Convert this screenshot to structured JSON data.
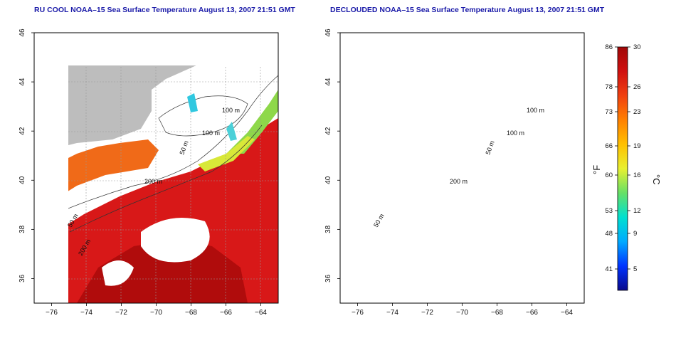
{
  "panels": [
    {
      "title": "RU COOL NOAA–15 Sea Surface Temperature August 13, 2007 21:51 GMT",
      "depth_labels": [
        "100 m",
        "100 m",
        "50 m",
        "200 m",
        "50 m",
        "200 m"
      ]
    },
    {
      "title": "DECLOUDED NOAA–15 Sea Surface Temperature August 13, 2007 21:51 GMT",
      "depth_labels": [
        "100 m",
        "100 m",
        "50 m",
        "200 m",
        "50 m"
      ]
    }
  ],
  "axes": {
    "x_ticks": [
      "−76",
      "−74",
      "−72",
      "−70",
      "−68",
      "−66",
      "−64"
    ],
    "y_ticks": [
      "46",
      "44",
      "42",
      "40",
      "38",
      "36"
    ],
    "lon_range": [
      -77,
      -63
    ],
    "lat_range": [
      35,
      46
    ]
  },
  "colorbar": {
    "f_ticks": [
      "86",
      "78",
      "73",
      "66",
      "60",
      "53",
      "48",
      "41"
    ],
    "c_ticks": [
      "30",
      "26",
      "23",
      "19",
      "16",
      "12",
      "9",
      "5"
    ],
    "f_label": "°F",
    "c_label": "°C",
    "colors": [
      "#0a0a8c",
      "#0033ff",
      "#00aaff",
      "#00e0d0",
      "#66e066",
      "#e8f030",
      "#ffc000",
      "#ff8000",
      "#f04010",
      "#d01010",
      "#a00808"
    ]
  },
  "colors": {
    "land": "#bdbdbd",
    "cloud": "#ffffff",
    "title": "#1a1aa8",
    "warm": "#d81818",
    "hot": "#b00c0c",
    "orange": "#f06a18"
  }
}
